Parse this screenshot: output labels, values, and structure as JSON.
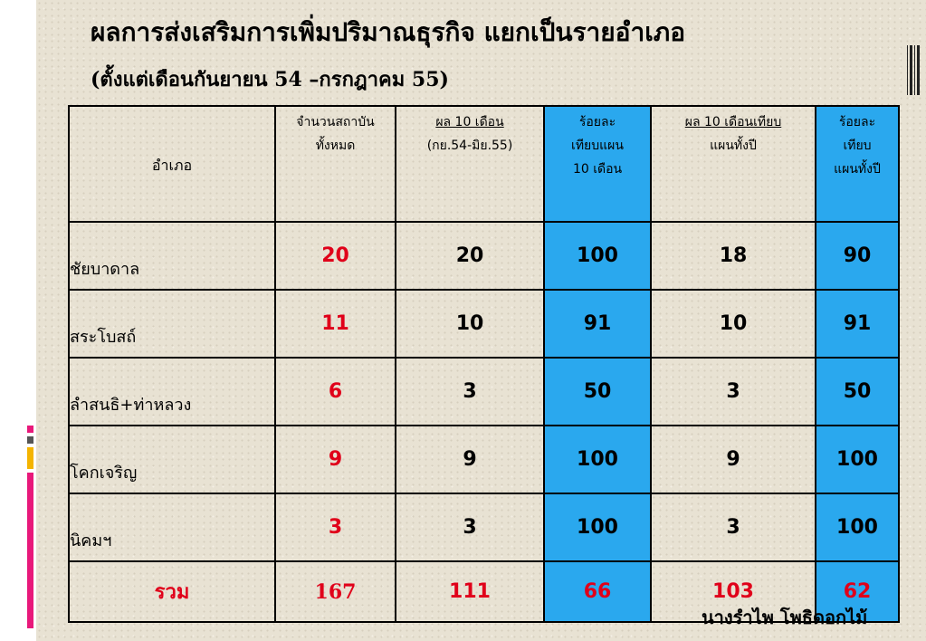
{
  "title": "ผลการส่งเสริมการเพิ่มปริมาณธุรกิจ แยกเป็นรายอำเภอ",
  "subtitle": "(ตั้งแต่เดือนกันยายน 54 –กรกฎาคม 55)",
  "headers": {
    "district": "อำเภอ",
    "total_institutions": [
      "จำนวนสถาบัน",
      "ทั้งหมด"
    ],
    "result_10_months": "ผล 10 เดือน",
    "result_10_months_period": "(กย.54-มิย.55)",
    "percent_vs_10_month_plan": [
      "ร้อยละ",
      "เทียบแผน",
      "10 เดือน"
    ],
    "result_vs_full_year_plan": [
      "ผล 10 เดือนเทียบ",
      "แผนทั้งปี"
    ],
    "percent_vs_full_year_plan": [
      "ร้อยละ",
      "เทียบ",
      "แผนทั้งปี"
    ]
  },
  "rows": [
    {
      "district": "ชัยบาดาล",
      "total": "20",
      "result10": "20",
      "pct10": "100",
      "vsYear": "18",
      "pctYear": "90"
    },
    {
      "district": "สระโบสถ์",
      "total": "11",
      "result10": "10",
      "pct10": "91",
      "vsYear": "10",
      "pctYear": "91"
    },
    {
      "district": "ลำสนธิ+ท่าหลวง",
      "total": "6",
      "result10": "3",
      "pct10": "50",
      "vsYear": "3",
      "pctYear": "50"
    },
    {
      "district": "โคกเจริญ",
      "total": "9",
      "result10": "9",
      "pct10": "100",
      "vsYear": "9",
      "pctYear": "100"
    },
    {
      "district": "นิคมฯ",
      "total": "3",
      "result10": "3",
      "pct10": "100",
      "vsYear": "3",
      "pctYear": "100"
    }
  ],
  "total_row": {
    "label": "รวม",
    "total": "167",
    "result10": "111",
    "pct10": "66",
    "vsYear": "103",
    "pctYear": "62"
  },
  "author": "นางรำไพ  โพธิดอกไม้",
  "colors": {
    "highlight_blue": "#2aa8ee",
    "total_red": "#e0001a",
    "background": "#e8e2d3"
  }
}
